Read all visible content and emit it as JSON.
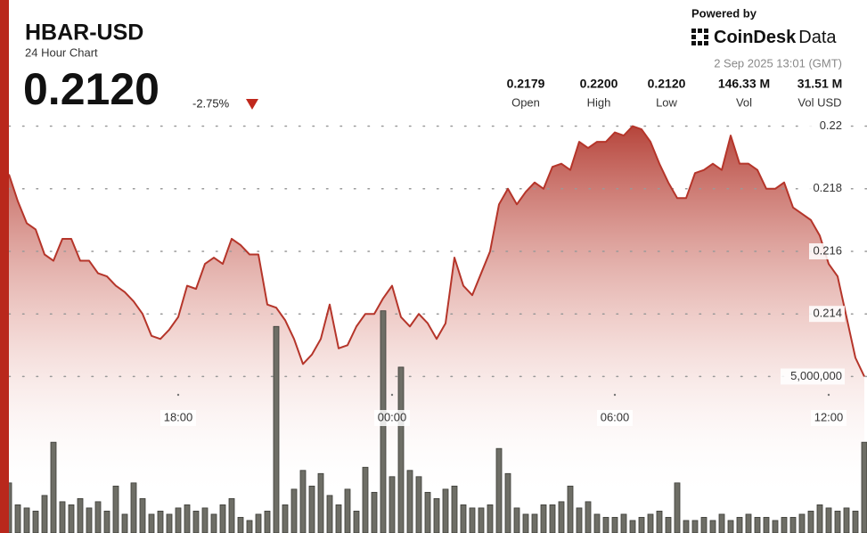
{
  "chart_data": {
    "type": "line",
    "title": "HBAR-USD",
    "subtitle": "24 Hour Chart",
    "price": "0.2120",
    "change": "-2.75%",
    "powered_by": "Powered by",
    "brand_name": "CoinDesk",
    "brand_suffix": "Data",
    "timestamp": "2 Sep 2025 13:01 (GMT)",
    "stats": [
      {
        "value": "0.2179",
        "label": "Open"
      },
      {
        "value": "0.2200",
        "label": "High"
      },
      {
        "value": "0.2120",
        "label": "Low"
      },
      {
        "value": "146.33 M",
        "label": "Vol"
      },
      {
        "value": "31.51 M",
        "label": "Vol USD"
      }
    ],
    "categories": [
      null,
      null,
      null,
      null,
      null,
      null,
      null,
      null,
      null,
      null,
      null,
      null,
      null,
      null,
      null,
      null,
      null,
      null,
      null,
      "18:00",
      null,
      null,
      null,
      null,
      null,
      null,
      null,
      null,
      null,
      null,
      null,
      null,
      null,
      null,
      null,
      null,
      null,
      null,
      null,
      null,
      null,
      null,
      null,
      "00:00",
      null,
      null,
      null,
      null,
      null,
      null,
      null,
      null,
      null,
      null,
      null,
      null,
      null,
      null,
      null,
      null,
      null,
      null,
      null,
      null,
      null,
      null,
      null,
      null,
      "06:00",
      null,
      null,
      null,
      null,
      null,
      null,
      null,
      null,
      null,
      null,
      null,
      null,
      null,
      null,
      null,
      null,
      null,
      null,
      null,
      null,
      null,
      null,
      null,
      "12:00",
      null,
      null,
      null,
      null
    ],
    "ylim": [
      0.207,
      0.2203
    ],
    "yticks": [
      0.214,
      0.216,
      0.218,
      0.22
    ],
    "y2lim": [
      0,
      13300000
    ],
    "y2ticks": [
      {
        "value": 5000000,
        "label": "5,000,000"
      }
    ],
    "grid": true,
    "series": [
      {
        "color": "#b5352a",
        "values": [
          0.21846,
          0.2176,
          0.2169,
          0.2167,
          0.2159,
          0.2157,
          0.2164,
          0.2164,
          0.2157,
          0.2157,
          0.2153,
          0.2152,
          0.2149,
          0.2147,
          0.2144,
          0.214,
          0.2133,
          0.2132,
          0.2135,
          0.2139,
          0.2149,
          0.2148,
          0.2156,
          0.2158,
          0.2156,
          0.2164,
          0.2162,
          0.2159,
          0.2159,
          0.2143,
          0.2142,
          0.2138,
          0.2132,
          0.2124,
          0.2127,
          0.2132,
          0.2143,
          0.2129,
          0.213,
          0.2136,
          0.214,
          0.214,
          0.2145,
          0.2149,
          0.2139,
          0.2136,
          0.214,
          0.2137,
          0.2132,
          0.2137,
          0.2158,
          0.2149,
          0.2146,
          0.2153,
          0.216,
          0.2175,
          0.218,
          0.2175,
          0.2179,
          0.2182,
          0.218,
          0.2187,
          0.2188,
          0.2186,
          0.2195,
          0.2193,
          0.2195,
          0.2195,
          0.2198,
          0.2197,
          0.22,
          0.2199,
          0.2195,
          0.2188,
          0.2182,
          0.2177,
          0.2177,
          0.2185,
          0.2186,
          0.2188,
          0.2186,
          0.2197,
          0.2188,
          0.2188,
          0.2186,
          0.218,
          0.218,
          0.2182,
          0.2174,
          0.2172,
          0.217,
          0.2165,
          0.2156,
          0.2152,
          0.2139,
          0.2126,
          0.212
        ]
      },
      {
        "type": "bar",
        "axis": "y2",
        "color": "#6e6e66",
        "values": [
          1600000,
          900000,
          800000,
          700000,
          1200000,
          2900000,
          1000000,
          900000,
          1100000,
          800000,
          1000000,
          700000,
          1500000,
          600000,
          1600000,
          1100000,
          600000,
          700000,
          600000,
          800000,
          900000,
          700000,
          800000,
          600000,
          900000,
          1100000,
          500000,
          400000,
          600000,
          700000,
          6600000,
          900000,
          1400000,
          2000000,
          1500000,
          1900000,
          1200000,
          900000,
          1400000,
          700000,
          2100000,
          1300000,
          7100000,
          1800000,
          5300000,
          2000000,
          1800000,
          1300000,
          1100000,
          1400000,
          1500000,
          900000,
          800000,
          800000,
          900000,
          2700000,
          1900000,
          800000,
          600000,
          600000,
          900000,
          900000,
          1000000,
          1500000,
          800000,
          1000000,
          600000,
          500000,
          500000,
          600000,
          400000,
          500000,
          600000,
          700000,
          500000,
          1600000,
          400000,
          400000,
          500000,
          400000,
          600000,
          400000,
          500000,
          600000,
          500000,
          500000,
          400000,
          500000,
          500000,
          600000,
          700000,
          900000,
          800000,
          700000,
          800000,
          700000,
          2900000
        ]
      }
    ]
  }
}
